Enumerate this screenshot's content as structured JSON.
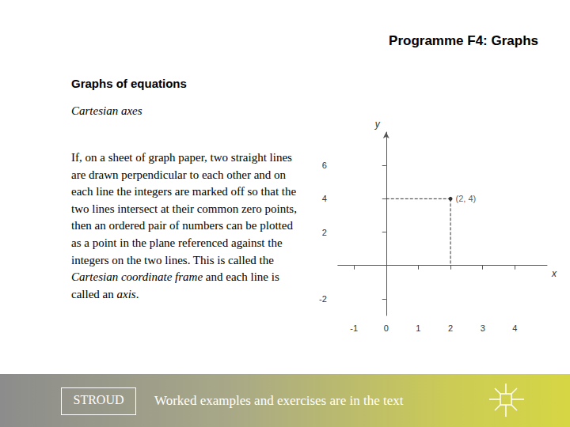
{
  "header": {
    "title": "Programme F4: Graphs"
  },
  "heading": "Graphs of equations",
  "subheading": "Cartesian axes",
  "paragraph": [
    {
      "text": "If, on a sheet of graph paper, two straight lines are drawn perpendicular to each other and on each line the integers are marked off so that the two lines intersect at their common zero points, then an ordered pair of numbers can be plotted as a point in the plane referenced against the integers on the two lines. This is called the ",
      "italic": false
    },
    {
      "text": "Cartesian coordinate frame",
      "italic": true
    },
    {
      "text": " and each line is called an ",
      "italic": false
    },
    {
      "text": "axis",
      "italic": true
    },
    {
      "text": ".",
      "italic": false
    }
  ],
  "chart_data": {
    "type": "scatter",
    "x_label": "x",
    "y_label": "y",
    "x": [
      2
    ],
    "values": [
      4
    ],
    "value_labels": [
      "(2, 4)"
    ],
    "data_labels": true,
    "color": "#000000",
    "marker": "circle",
    "grid": false,
    "xlim": [
      -1.5,
      5
    ],
    "xticks": [
      -1,
      0,
      1,
      2,
      3,
      4
    ],
    "ylim": [
      -3,
      8
    ],
    "yticks": [
      -2,
      2,
      4,
      6
    ]
  },
  "footer": {
    "logo": "STROUD",
    "text": "Worked examples and exercises are in the text"
  }
}
